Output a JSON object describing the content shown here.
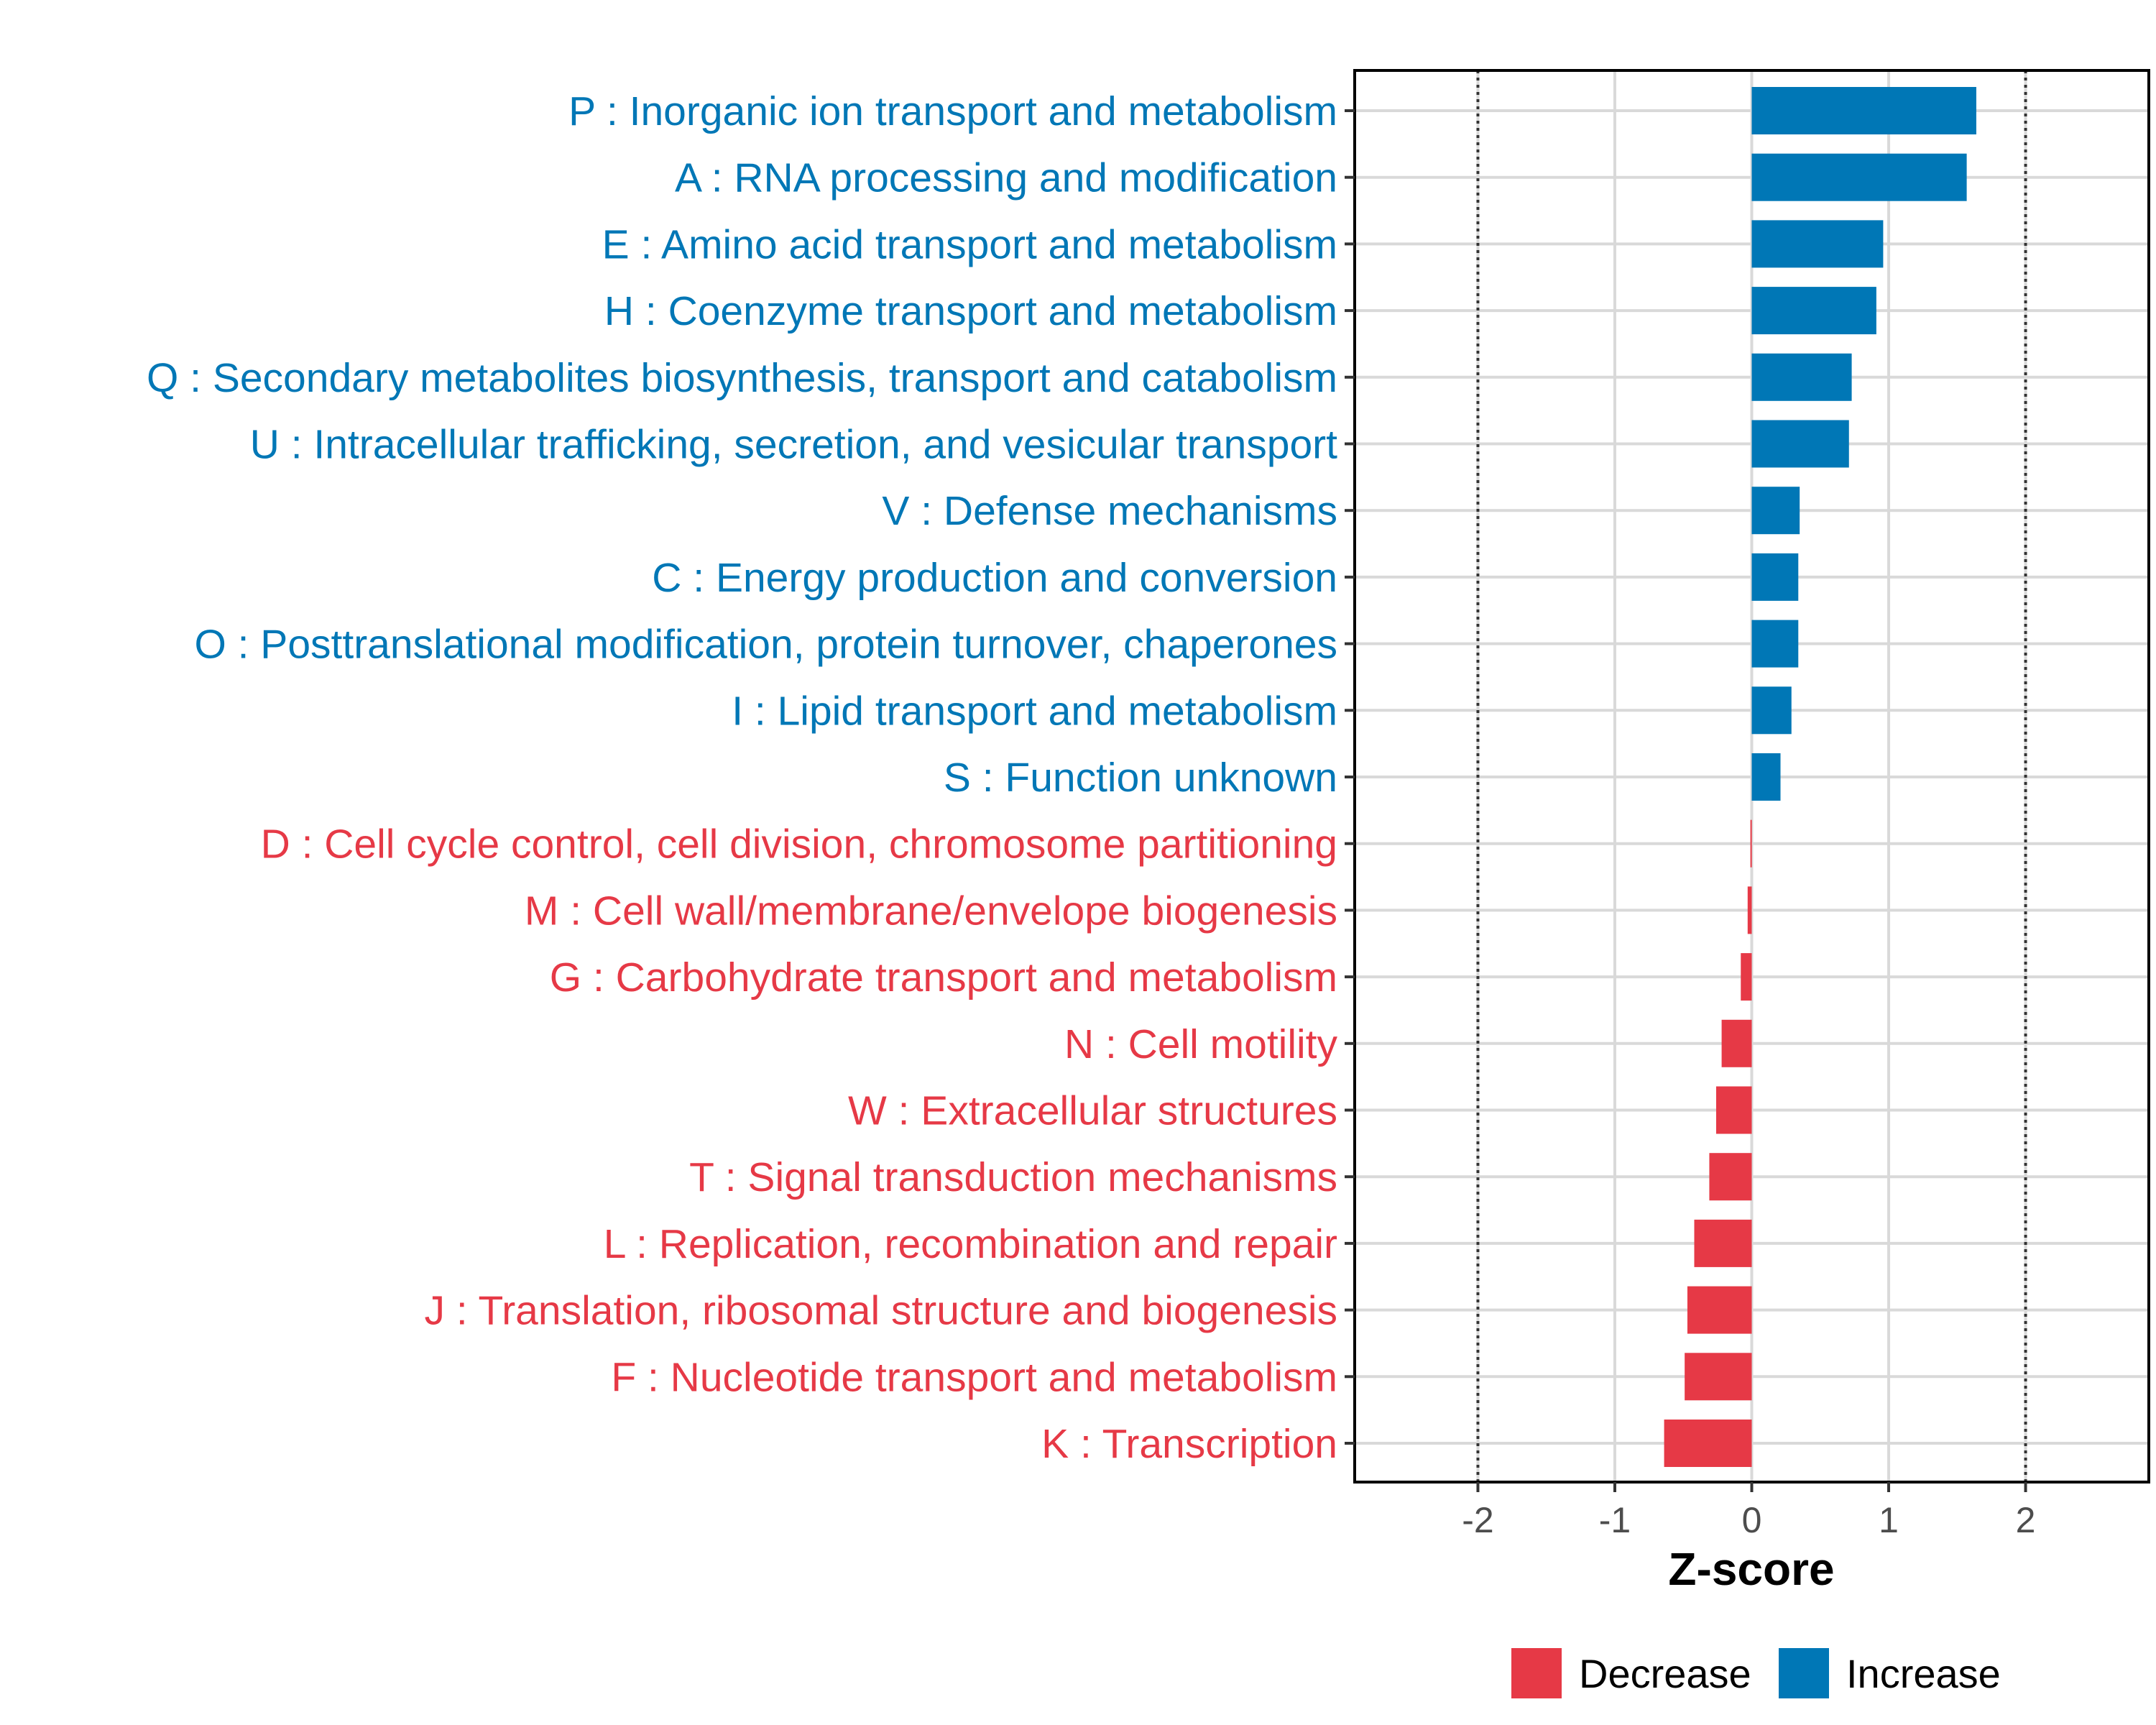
{
  "chart_data": {
    "type": "bar",
    "orientation": "horizontal",
    "xlabel": "Z-score",
    "xlim": [
      -2.9,
      2.9
    ],
    "ticks": [
      -2,
      -1,
      0,
      1,
      2
    ],
    "tick_labels": [
      "-2",
      "-1",
      "0",
      "1",
      "2"
    ],
    "reference_lines": [
      -2,
      2
    ],
    "grid": true,
    "colors": {
      "Decrease": "#e63946",
      "Increase": "#0077b6"
    },
    "legend": {
      "position": "bottom",
      "entries": [
        "Decrease",
        "Increase"
      ]
    },
    "categories": [
      "P : Inorganic ion transport and metabolism",
      "A : RNA processing and modification",
      "E : Amino acid transport and metabolism",
      "H : Coenzyme transport and metabolism",
      "Q : Secondary metabolites biosynthesis, transport and catabolism",
      "U : Intracellular trafficking, secretion, and vesicular transport",
      "V : Defense mechanisms",
      "C : Energy production and conversion",
      "O : Posttranslational modification, protein turnover, chaperones",
      "I : Lipid transport and metabolism",
      "S : Function unknown",
      "D : Cell cycle control, cell division, chromosome partitioning",
      "M : Cell wall/membrane/envelope biogenesis",
      "G : Carbohydrate transport and metabolism",
      "N : Cell motility",
      "W : Extracellular structures",
      "T : Signal transduction mechanisms",
      "L : Replication, recombination and repair",
      "J : Translation, ribosomal structure and biogenesis",
      "F : Nucleotide transport and metabolism",
      "K : Transcription"
    ],
    "values": [
      1.64,
      1.57,
      0.96,
      0.91,
      0.73,
      0.71,
      0.35,
      0.34,
      0.34,
      0.29,
      0.21,
      -0.01,
      -0.03,
      -0.08,
      -0.22,
      -0.26,
      -0.31,
      -0.42,
      -0.47,
      -0.49,
      -0.64
    ],
    "groups": [
      "Increase",
      "Increase",
      "Increase",
      "Increase",
      "Increase",
      "Increase",
      "Increase",
      "Increase",
      "Increase",
      "Increase",
      "Increase",
      "Decrease",
      "Decrease",
      "Decrease",
      "Decrease",
      "Decrease",
      "Decrease",
      "Decrease",
      "Decrease",
      "Decrease",
      "Decrease"
    ]
  }
}
